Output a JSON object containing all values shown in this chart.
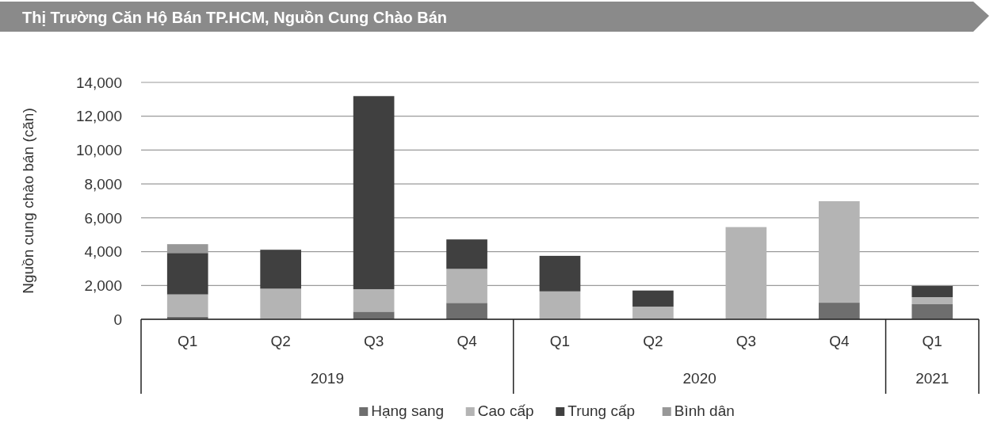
{
  "chart_data": {
    "type": "bar",
    "stacked": true,
    "title": "Thị Trường Căn Hộ Bán TP.HCM, Nguồn Cung Chào Bán",
    "ylabel": "Nguồn cung chào bán (căn)",
    "categories": [
      "Q1",
      "Q2",
      "Q3",
      "Q4",
      "Q1",
      "Q2",
      "Q3",
      "Q4",
      "Q1"
    ],
    "annotations": [
      "2019",
      "2020",
      "2021"
    ],
    "series": [
      {
        "name": "Hạng sang",
        "color": "#6e6e6e",
        "values": [
          150,
          0,
          450,
          970,
          0,
          0,
          0,
          980,
          890
        ]
      },
      {
        "name": "Cao cấp",
        "color": "#b4b4b4",
        "values": [
          1320,
          1810,
          1330,
          2010,
          1650,
          750,
          5450,
          6000,
          420
        ]
      },
      {
        "name": "Trung cấp",
        "color": "#404040",
        "values": [
          2450,
          2300,
          11410,
          1740,
          2100,
          950,
          0,
          0,
          660
        ]
      },
      {
        "name": "Bình dân",
        "color": "#989898",
        "values": [
          520,
          0,
          0,
          0,
          0,
          0,
          0,
          0,
          0
        ]
      }
    ],
    "ylim": [
      0,
      14000
    ],
    "yticks": [
      {
        "value": 0,
        "label": "0"
      },
      {
        "value": 2000,
        "label": "2,000"
      },
      {
        "value": 4000,
        "label": "4,000"
      },
      {
        "value": 6000,
        "label": "6,000"
      },
      {
        "value": 8000,
        "label": "8,000"
      },
      {
        "value": 10000,
        "label": "10,000"
      },
      {
        "value": 12000,
        "label": "12,000"
      },
      {
        "value": 14000,
        "label": "14,000"
      }
    ],
    "grid": "y",
    "legend": "bottom"
  }
}
